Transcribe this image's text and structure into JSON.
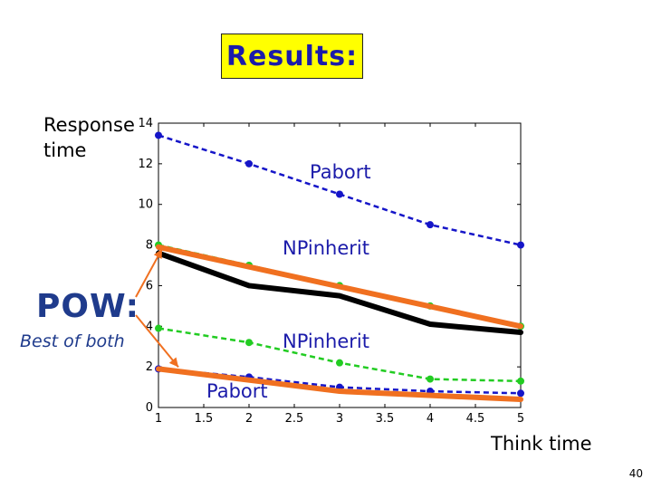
{
  "slide": {
    "title": "Results:",
    "page_number": "40",
    "annotations": {
      "pabort_top": "Pabort",
      "npinherit_top": "NPinherit",
      "npinherit_bottom": "NPinherit",
      "pabort_bottom": "Pabort",
      "pow_label": "POW:",
      "pow_sub": "Best of both"
    }
  },
  "chart_data": {
    "type": "line",
    "xlabel": "Think time",
    "ylabel": "Response time",
    "xlim": [
      1,
      5
    ],
    "ylim": [
      0,
      14
    ],
    "xticks": [
      "1",
      "1.5",
      "2",
      "2.5",
      "3",
      "3.5",
      "4",
      "4.5",
      "5"
    ],
    "yticks": [
      "0",
      "2",
      "4",
      "6",
      "8",
      "10",
      "12",
      "14"
    ],
    "grid": false,
    "colors": {
      "blue": "#1515c8",
      "green": "#22cc22",
      "black": "#000000",
      "orange": "#f07020",
      "pow_text": "#1f3b8c",
      "title_bg": "#ffff00"
    },
    "series": [
      {
        "color": "#1515c8",
        "style": "dashed-marker",
        "x": [
          1,
          2,
          3,
          4,
          5
        ],
        "y": [
          13.4,
          12.0,
          10.5,
          9.0,
          8.0
        ]
      },
      {
        "color": "#22cc22",
        "style": "dashed-marker",
        "x": [
          1,
          2,
          3,
          4,
          5
        ],
        "y": [
          8.0,
          7.0,
          6.0,
          5.0,
          4.0
        ]
      },
      {
        "color": "#000000",
        "style": "solid-thick",
        "x": [
          1,
          2,
          3,
          4,
          5
        ],
        "y": [
          7.6,
          6.0,
          5.5,
          4.1,
          3.7
        ]
      },
      {
        "color": "#f07020",
        "style": "solid-thick",
        "x": [
          1,
          5
        ],
        "y": [
          7.9,
          4.0
        ]
      },
      {
        "color": "#22cc22",
        "style": "dashed-marker",
        "x": [
          1,
          2,
          3,
          4,
          5
        ],
        "y": [
          3.9,
          3.2,
          2.2,
          1.4,
          1.3
        ]
      },
      {
        "color": "#1515c8",
        "style": "dashed-marker",
        "x": [
          1,
          2,
          3,
          4,
          5
        ],
        "y": [
          1.9,
          1.5,
          1.0,
          0.8,
          0.7
        ]
      },
      {
        "color": "#f07020",
        "style": "solid-thick",
        "x": [
          1,
          3,
          5
        ],
        "y": [
          1.9,
          0.8,
          0.4
        ]
      }
    ]
  }
}
